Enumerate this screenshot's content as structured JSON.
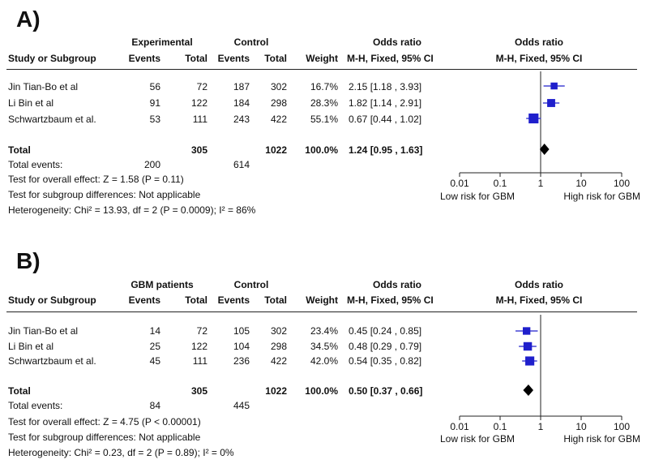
{
  "panels": [
    {
      "label": "A)",
      "group_header": "Experimental",
      "control_header": "Control",
      "or_header": "Odds ratio",
      "or_method": "M-H, Fixed, 95% CI",
      "plot_header": "Odds ratio",
      "plot_method": "M-H, Fixed, 95% CI",
      "col_study": "Study or Subgroup",
      "col_events": "Events",
      "col_total": "Total",
      "col_weight": "Weight",
      "rows": [
        {
          "study": "Jin Tian-Bo et al",
          "e_events": "56",
          "e_total": "72",
          "c_events": "187",
          "c_total": "302",
          "weight": "16.7%",
          "ci": "2.15 [1.18 , 3.93]"
        },
        {
          "study": "Li Bin et al",
          "e_events": "91",
          "e_total": "122",
          "c_events": "184",
          "c_total": "298",
          "weight": "28.3%",
          "ci": "1.82 [1.14 , 2.91]"
        },
        {
          "study": "Schwartzbaum et al.",
          "e_events": "53",
          "e_total": "111",
          "c_events": "243",
          "c_total": "422",
          "weight": "55.1%",
          "ci": "0.67 [0.44 , 1.02]"
        }
      ],
      "total": {
        "label": "Total",
        "e_total": "305",
        "c_total": "1022",
        "weight": "100.0%",
        "ci": "1.24 [0.95 , 1.63]"
      },
      "total_events": {
        "label": "Total events:",
        "e_events": "200",
        "c_events": "614"
      },
      "footer": [
        "Test for overall effect: Z = 1.58 (P = 0.11)",
        "Test for subgroup differences: Not applicable",
        "Heterogeneity: Chi² = 13.93, df = 2 (P = 0.0009); I² = 86%"
      ],
      "axis_ticks": [
        "0.01",
        "0.1",
        "1",
        "10",
        "100"
      ],
      "axis_left_label": "Low risk for GBM",
      "axis_right_label": "High risk for GBM"
    },
    {
      "label": "B)",
      "group_header": "GBM patients",
      "control_header": "Control",
      "or_header": "Odds ratio",
      "or_method": "M-H, Fixed, 95% CI",
      "plot_header": "Odds ratio",
      "plot_method": "M-H, Fixed, 95% CI",
      "col_study": "Study or Subgroup",
      "col_events": "Events",
      "col_total": "Total",
      "col_weight": "Weight",
      "rows": [
        {
          "study": "Jin Tian-Bo et al",
          "e_events": "14",
          "e_total": "72",
          "c_events": "105",
          "c_total": "302",
          "weight": "23.4%",
          "ci": "0.45 [0.24 , 0.85]"
        },
        {
          "study": "Li Bin et al",
          "e_events": "25",
          "e_total": "122",
          "c_events": "104",
          "c_total": "298",
          "weight": "34.5%",
          "ci": "0.48 [0.29 , 0.79]"
        },
        {
          "study": "Schwartzbaum et al.",
          "e_events": "45",
          "e_total": "111",
          "c_events": "236",
          "c_total": "422",
          "weight": "42.0%",
          "ci": "0.54 [0.35 , 0.82]"
        }
      ],
      "total": {
        "label": "Total",
        "e_total": "305",
        "c_total": "1022",
        "weight": "100.0%",
        "ci": "0.50 [0.37 , 0.66]"
      },
      "total_events": {
        "label": "Total events:",
        "e_events": "84",
        "c_events": "445"
      },
      "footer": [
        "Test for overall effect: Z = 4.75 (P < 0.00001)",
        "Test for subgroup differences: Not applicable",
        "Heterogeneity: Chi² = 0.23, df = 2 (P = 0.89); I² = 0%"
      ],
      "axis_ticks": [
        "0.01",
        "0.1",
        "1",
        "10",
        "100"
      ],
      "axis_left_label": "Low risk for GBM",
      "axis_right_label": "High risk for GBM"
    }
  ],
  "colors": {
    "marker": "#1f1fcc",
    "diamond": "#000000",
    "line": "#222222"
  },
  "chart_data": [
    {
      "type": "forest",
      "title": "A)",
      "scale": "log",
      "xlim": [
        0.01,
        100
      ],
      "xticks": [
        0.01,
        0.1,
        1,
        10,
        100
      ],
      "studies": [
        {
          "name": "Jin Tian-Bo et al",
          "or": 2.15,
          "lower": 1.18,
          "upper": 3.93,
          "weight": 16.7
        },
        {
          "name": "Li Bin et al",
          "or": 1.82,
          "lower": 1.14,
          "upper": 2.91,
          "weight": 28.3
        },
        {
          "name": "Schwartzbaum et al.",
          "or": 0.67,
          "lower": 0.44,
          "upper": 1.02,
          "weight": 55.1
        }
      ],
      "pooled": {
        "or": 1.24,
        "lower": 0.95,
        "upper": 1.63
      }
    },
    {
      "type": "forest",
      "title": "B)",
      "scale": "log",
      "xlim": [
        0.01,
        100
      ],
      "xticks": [
        0.01,
        0.1,
        1,
        10,
        100
      ],
      "studies": [
        {
          "name": "Jin Tian-Bo et al",
          "or": 0.45,
          "lower": 0.24,
          "upper": 0.85,
          "weight": 23.4
        },
        {
          "name": "Li Bin et al",
          "or": 0.48,
          "lower": 0.29,
          "upper": 0.79,
          "weight": 34.5
        },
        {
          "name": "Schwartzbaum et al.",
          "or": 0.54,
          "lower": 0.35,
          "upper": 0.82,
          "weight": 42.0
        }
      ],
      "pooled": {
        "or": 0.5,
        "lower": 0.37,
        "upper": 0.66
      }
    }
  ]
}
